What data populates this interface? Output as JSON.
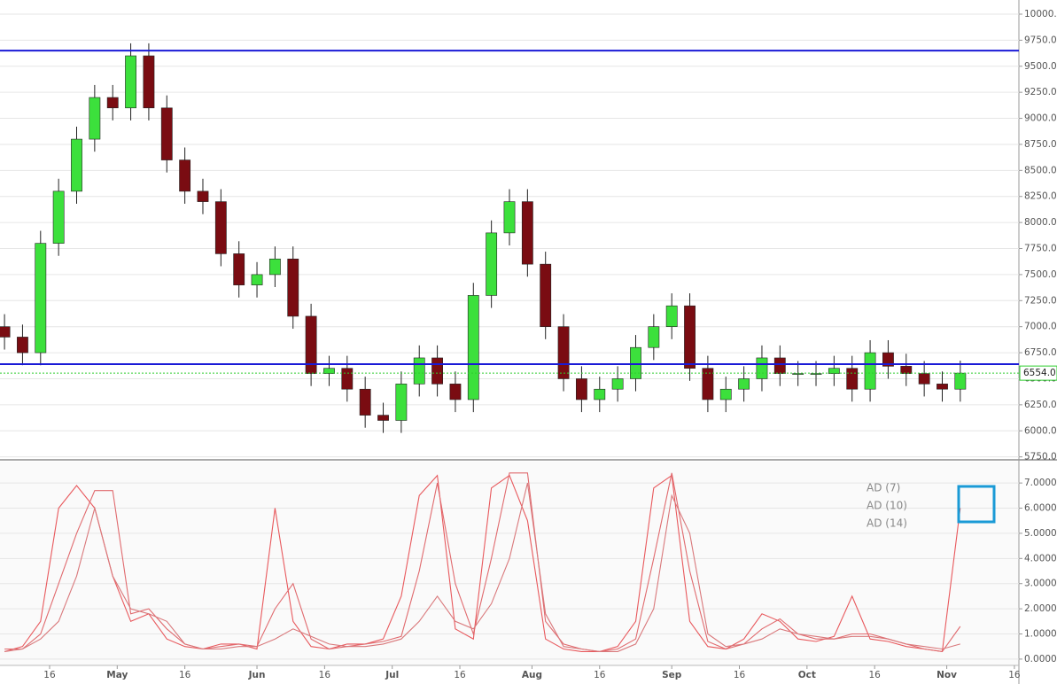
{
  "chart_data": [
    {
      "type": "candlestick",
      "xlim": [
        95,
        321
      ],
      "x": [
        96,
        100,
        104,
        108,
        112,
        116,
        120,
        124,
        128,
        132,
        136,
        140,
        144,
        148,
        152,
        156,
        160,
        164,
        168,
        172,
        176,
        180,
        184,
        188,
        192,
        196,
        200,
        204,
        208,
        212,
        216,
        220,
        224,
        228,
        232,
        236,
        240,
        244,
        248,
        252,
        256,
        260,
        264,
        268,
        272,
        276,
        280,
        284,
        288,
        292,
        296,
        300,
        304,
        308
      ],
      "open": [
        7000,
        6900,
        6750,
        7800,
        8300,
        8800,
        9200,
        9100,
        9600,
        9100,
        8600,
        8300,
        8200,
        7700,
        7400,
        7500,
        7650,
        7100,
        6550,
        6600,
        6400,
        6150,
        6100,
        6450,
        6700,
        6450,
        6300,
        7300,
        7900,
        8200,
        7600,
        7000,
        6500,
        6300,
        6400,
        6500,
        6800,
        7000,
        7200,
        6600,
        6300,
        6400,
        6500,
        6700,
        6550,
        6550,
        6550,
        6600,
        6400,
        6750,
        6620,
        6550,
        6450,
        6400
      ],
      "high": [
        7120,
        7020,
        7920,
        8420,
        8920,
        9320,
        9320,
        9720,
        9720,
        9220,
        8720,
        8420,
        8320,
        7820,
        7620,
        7770,
        7770,
        7220,
        6720,
        6720,
        6520,
        6270,
        6570,
        6820,
        6820,
        6570,
        7420,
        8020,
        8320,
        8320,
        7720,
        7120,
        6620,
        6520,
        6620,
        6920,
        7120,
        7320,
        7320,
        6720,
        6520,
        6620,
        6820,
        6820,
        6670,
        6670,
        6720,
        6720,
        6870,
        6870,
        6740,
        6670,
        6570,
        6674
      ],
      "low": [
        6780,
        6630,
        6630,
        7680,
        8180,
        8680,
        8980,
        8980,
        8980,
        8480,
        8180,
        8080,
        7580,
        7280,
        7280,
        7380,
        6980,
        6430,
        6430,
        6280,
        6030,
        5980,
        5980,
        6330,
        6330,
        6180,
        6180,
        7180,
        7780,
        7480,
        6880,
        6380,
        6180,
        6180,
        6280,
        6380,
        6680,
        6880,
        6480,
        6180,
        6180,
        6280,
        6380,
        6430,
        6430,
        6430,
        6430,
        6280,
        6280,
        6500,
        6430,
        6330,
        6280,
        6280
      ],
      "close": [
        6900,
        6750,
        7800,
        8300,
        8800,
        9200,
        9100,
        9600,
        9100,
        8600,
        8300,
        8200,
        7700,
        7400,
        7500,
        7650,
        7100,
        6550,
        6600,
        6400,
        6150,
        6100,
        6450,
        6700,
        6450,
        6300,
        7300,
        7900,
        8200,
        7600,
        7000,
        6500,
        6300,
        6400,
        6500,
        6800,
        7000,
        7200,
        6600,
        6300,
        6400,
        6500,
        6700,
        6550,
        6550,
        6550,
        6600,
        6400,
        6750,
        6620,
        6550,
        6450,
        6400,
        6554
      ],
      "up_color": "#3ce03c",
      "down_color": "#7a0c12",
      "ylim": [
        5730,
        10136
      ],
      "yticks": [
        {
          "value": 5750,
          "label": "5750.0"
        },
        {
          "value": 6000,
          "label": "6000.0"
        },
        {
          "value": 6250,
          "label": "6250.0"
        },
        {
          "value": 6500,
          "label": "6500.0"
        },
        {
          "value": 6750,
          "label": "6750.0"
        },
        {
          "value": 7000,
          "label": "7000.0"
        },
        {
          "value": 7250,
          "label": "7250.0"
        },
        {
          "value": 7500,
          "label": "7500.0"
        },
        {
          "value": 7750,
          "label": "7750.0"
        },
        {
          "value": 8000,
          "label": "8000.0"
        },
        {
          "value": 8250,
          "label": "8250.0"
        },
        {
          "value": 8500,
          "label": "8500.0"
        },
        {
          "value": 8750,
          "label": "8750.0"
        },
        {
          "value": 9000,
          "label": "9000.0"
        },
        {
          "value": 9250,
          "label": "9250.0"
        },
        {
          "value": 9500,
          "label": "9500.0"
        },
        {
          "value": 9750,
          "label": "9750.0"
        },
        {
          "value": 10000,
          "label": "10000.0"
        }
      ],
      "hlines": {
        "values": [
          9650,
          6640
        ],
        "color": "#1a1ad6"
      },
      "price_tag": {
        "value": 6554,
        "label": "6554.0",
        "color": "#2ecc2e"
      },
      "grid": true
    },
    {
      "type": "line",
      "xlim": [
        95,
        321
      ],
      "x": [
        96,
        100,
        104,
        108,
        112,
        116,
        120,
        124,
        128,
        132,
        136,
        140,
        144,
        148,
        152,
        156,
        160,
        164,
        168,
        172,
        176,
        180,
        184,
        188,
        192,
        196,
        200,
        204,
        208,
        212,
        216,
        220,
        224,
        228,
        232,
        236,
        240,
        244,
        248,
        252,
        256,
        260,
        264,
        268,
        272,
        276,
        280,
        284,
        288,
        292,
        296,
        300,
        304,
        308
      ],
      "xticks": [
        {
          "value": 106,
          "label": "16"
        },
        {
          "value": 121,
          "label": "May"
        },
        {
          "value": 136,
          "label": "16"
        },
        {
          "value": 152,
          "label": "Jun"
        },
        {
          "value": 167,
          "label": "16"
        },
        {
          "value": 182,
          "label": "Jul"
        },
        {
          "value": 197,
          "label": "16"
        },
        {
          "value": 213,
          "label": "Aug"
        },
        {
          "value": 228,
          "label": "16"
        },
        {
          "value": 244,
          "label": "Sep"
        },
        {
          "value": 259,
          "label": "16"
        },
        {
          "value": 274,
          "label": "Oct"
        },
        {
          "value": 289,
          "label": "16"
        },
        {
          "value": 305,
          "label": "Nov"
        },
        {
          "value": 320,
          "label": "16"
        }
      ],
      "ylim": [
        -0.25,
        7.85
      ],
      "yticks": [
        {
          "value": 0,
          "label": "0.0000"
        },
        {
          "value": 1,
          "label": "1.0000"
        },
        {
          "value": 2,
          "label": "2.0000"
        },
        {
          "value": 3,
          "label": "3.0000"
        },
        {
          "value": 4,
          "label": "4.0000"
        },
        {
          "value": 5,
          "label": "5.0000"
        },
        {
          "value": 6,
          "label": "6.0000"
        },
        {
          "value": 7,
          "label": "7.0000"
        }
      ],
      "grid": true,
      "legend": "upper right",
      "series": [
        {
          "name": "AD (7)",
          "color": "#e8585c",
          "values": [
            0.3,
            0.5,
            1.5,
            6.0,
            6.9,
            6.0,
            3.3,
            1.5,
            1.8,
            0.8,
            0.5,
            0.4,
            0.6,
            0.6,
            0.4,
            6.0,
            1.5,
            0.5,
            0.4,
            0.6,
            0.6,
            0.8,
            2.5,
            6.5,
            7.3,
            1.2,
            0.8,
            6.8,
            7.3,
            5.5,
            0.8,
            0.4,
            0.3,
            0.3,
            0.5,
            1.5,
            6.8,
            7.3,
            1.5,
            0.5,
            0.4,
            0.8,
            1.8,
            1.5,
            0.8,
            0.7,
            0.9,
            2.5,
            0.8,
            0.7,
            0.5,
            0.4,
            0.3,
            6.0
          ]
        },
        {
          "name": "AD (10)",
          "color": "#e06a6e",
          "values": [
            0.4,
            0.4,
            1.0,
            3.0,
            5.0,
            6.7,
            6.7,
            1.8,
            2.0,
            1.2,
            0.6,
            0.4,
            0.5,
            0.6,
            0.5,
            2.0,
            3.0,
            0.8,
            0.4,
            0.5,
            0.6,
            0.7,
            0.9,
            3.5,
            7.0,
            3.0,
            1.0,
            4.0,
            7.4,
            7.4,
            1.5,
            0.6,
            0.4,
            0.3,
            0.4,
            0.8,
            4.0,
            7.4,
            3.5,
            0.7,
            0.4,
            0.6,
            1.2,
            1.6,
            1.0,
            0.8,
            0.8,
            1.0,
            1.0,
            0.8,
            0.6,
            0.4,
            0.3,
            1.3
          ]
        },
        {
          "name": "AD (14)",
          "color": "#d9787b",
          "values": [
            0.3,
            0.4,
            0.8,
            1.5,
            3.3,
            6.0,
            3.3,
            2.0,
            1.8,
            1.5,
            0.6,
            0.4,
            0.4,
            0.5,
            0.5,
            0.8,
            1.2,
            0.9,
            0.6,
            0.5,
            0.5,
            0.6,
            0.8,
            1.5,
            2.5,
            1.5,
            1.2,
            2.2,
            4.0,
            7.0,
            1.8,
            0.5,
            0.4,
            0.3,
            0.3,
            0.6,
            2.0,
            6.5,
            5.0,
            1.0,
            0.5,
            0.6,
            0.8,
            1.2,
            1.0,
            0.9,
            0.8,
            0.9,
            0.9,
            0.8,
            0.6,
            0.5,
            0.4,
            0.6
          ]
        }
      ]
    }
  ]
}
